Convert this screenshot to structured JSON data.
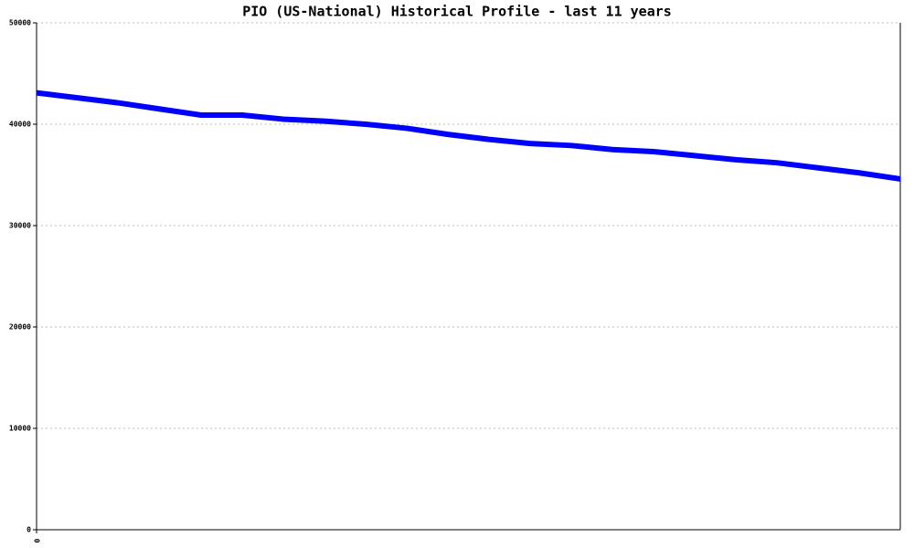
{
  "chart_data": {
    "type": "line",
    "title": "PIO (US-National) Historical Profile - last 11 years",
    "x": [
      0,
      1,
      2,
      3,
      4,
      5,
      6,
      7,
      8,
      9,
      10,
      11,
      12,
      13,
      14,
      15,
      16,
      17,
      18,
      19,
      20,
      21
    ],
    "series": [
      {
        "color": "#0000ff",
        "values": [
          43100,
          42600,
          42100,
          41500,
          40900,
          40900,
          40500,
          40300,
          40000,
          39600,
          39000,
          38500,
          38100,
          37900,
          37500,
          37300,
          36900,
          36500,
          36200,
          35700,
          35200,
          34600
        ]
      }
    ],
    "xlim": [
      0,
      21
    ],
    "xticks": [
      0
    ],
    "ylim": [
      0,
      50000
    ],
    "yticks": [
      0,
      10000,
      20000,
      30000,
      40000,
      50000
    ],
    "grid": true
  }
}
